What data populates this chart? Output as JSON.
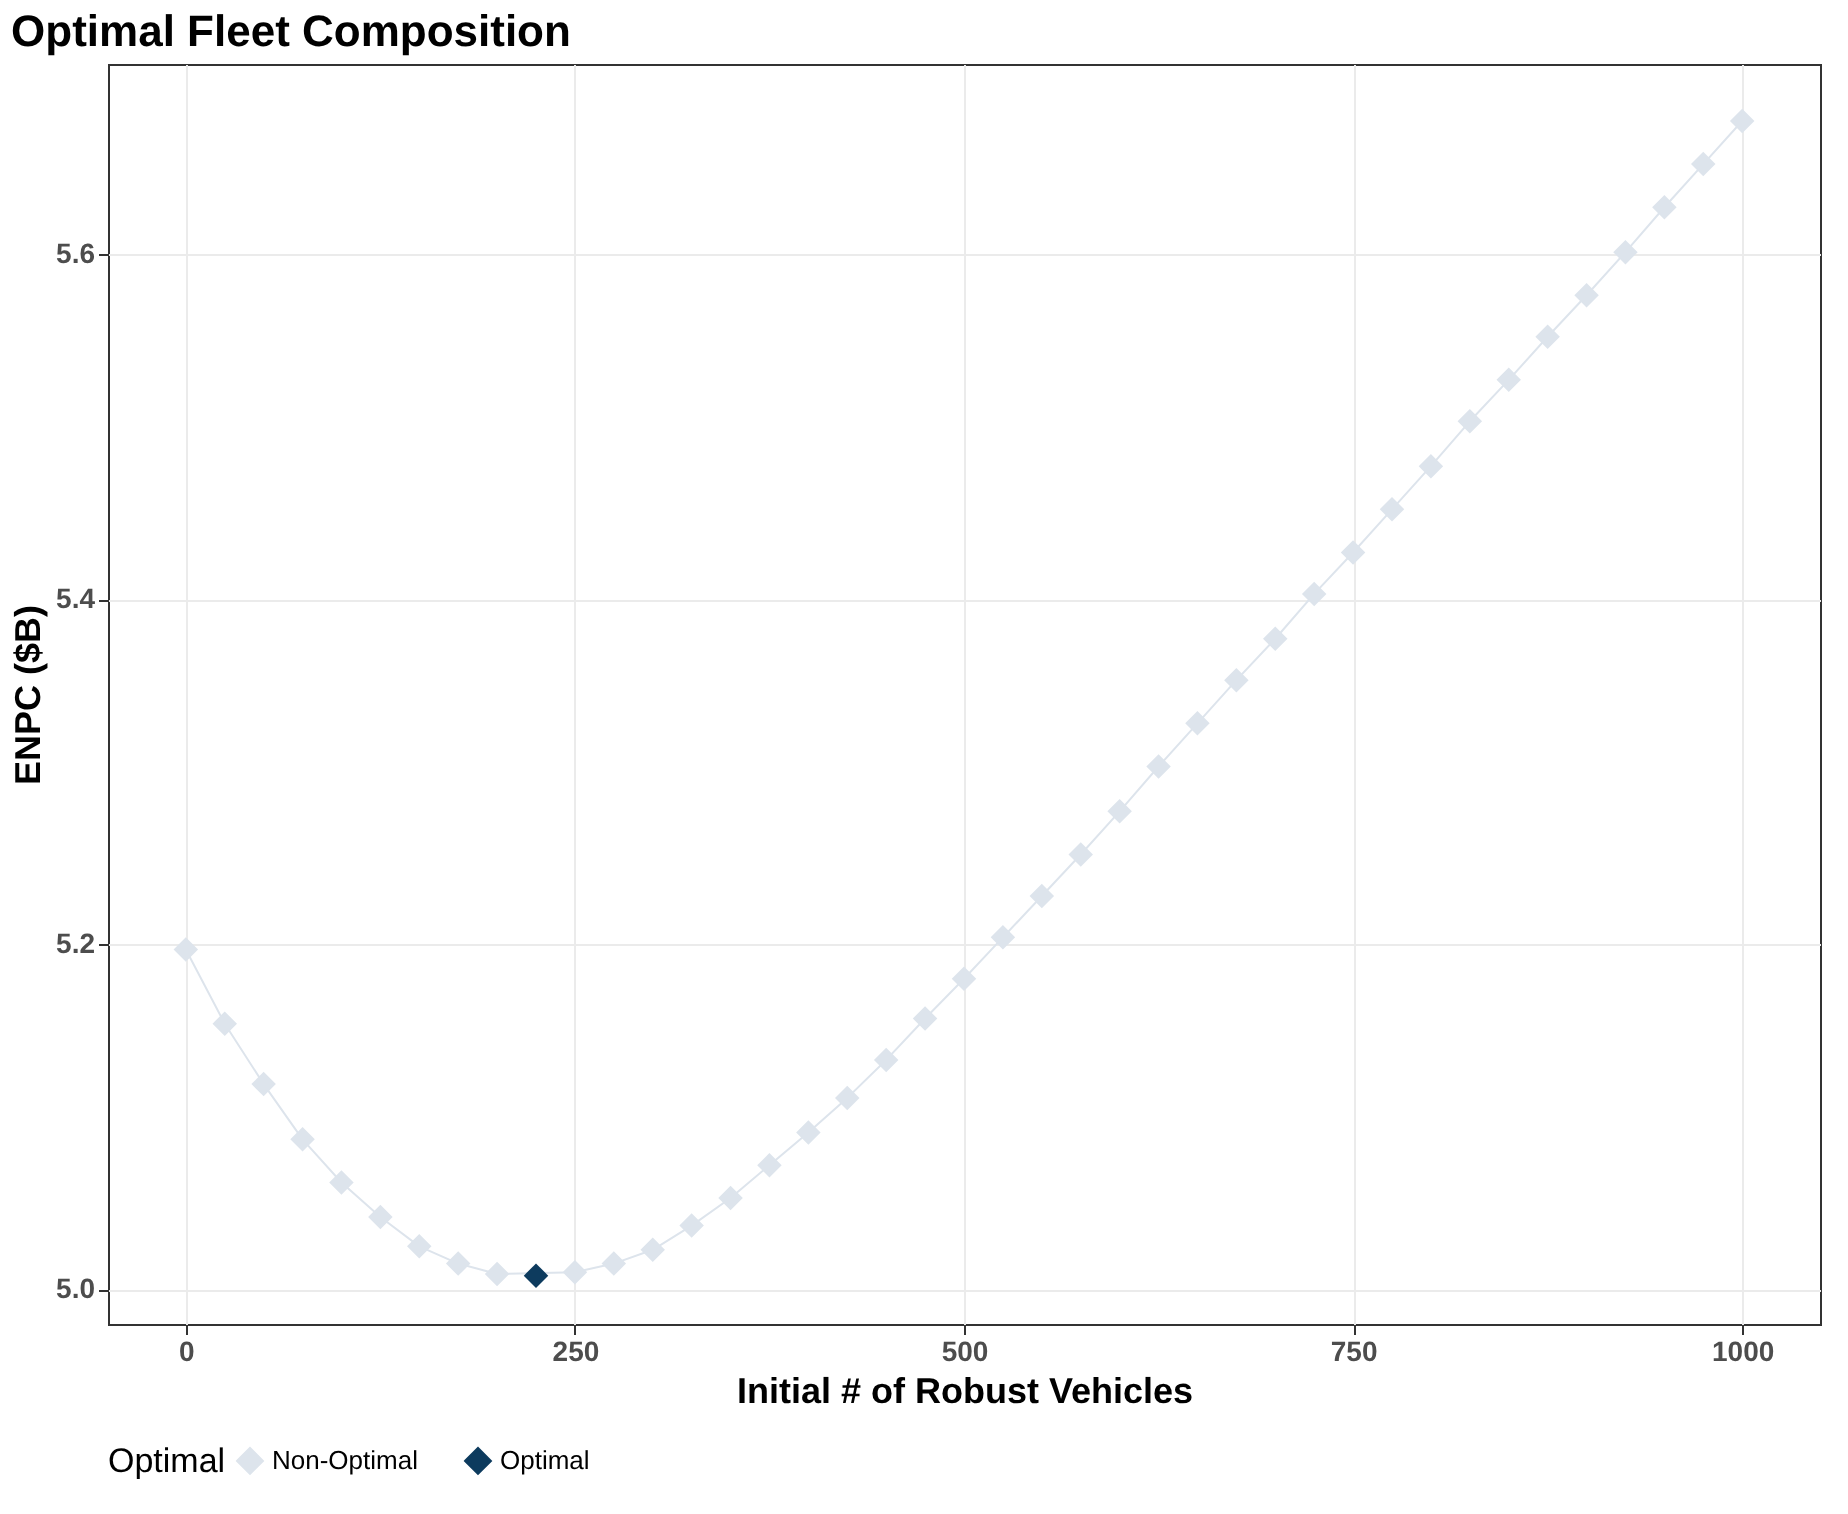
{
  "chart_data": {
    "type": "line",
    "title": "Optimal Fleet Composition",
    "xlabel": "Initial # of Robust Vehicles",
    "ylabel": "ENPC ($B)",
    "legend_title": "Optimal",
    "xlim": [
      -50,
      1050
    ],
    "xticks": [
      0,
      250,
      500,
      750,
      1000
    ],
    "ylim": [
      4.98,
      5.71
    ],
    "yticks": [
      {
        "value": 5,
        "label": "5.0"
      },
      5.2,
      5.4,
      5.6
    ],
    "grid": true,
    "legend": "bottom",
    "marker": "diamond",
    "line_style": "solid",
    "series": [
      {
        "name": "Non-Optimal",
        "color": "#dde4ec",
        "x": [
          0,
          25,
          50,
          75,
          100,
          125,
          150,
          175,
          200,
          250,
          275,
          300,
          325,
          350,
          375,
          400,
          425,
          450,
          475,
          500,
          525,
          550,
          575,
          600,
          625,
          650,
          675,
          700,
          725,
          750,
          775,
          800,
          825,
          850,
          875,
          900,
          925,
          950,
          975,
          1000
        ],
        "values": [
          5.197,
          5.154,
          5.119,
          5.087,
          5.062,
          5.042,
          5.025,
          5.015,
          5.009,
          5.01,
          5.015,
          5.023,
          5.037,
          5.053,
          5.072,
          5.091,
          5.111,
          5.133,
          5.157,
          5.18,
          5.204,
          5.228,
          5.252,
          5.277,
          5.303,
          5.328,
          5.353,
          5.377,
          5.403,
          5.427,
          5.452,
          5.477,
          5.503,
          5.527,
          5.552,
          5.576,
          5.601,
          5.627,
          5.652,
          5.677
        ]
      },
      {
        "name": "Optimal",
        "color": "#0d3b5e",
        "x": [
          225
        ],
        "values": [
          5.008
        ]
      }
    ]
  }
}
